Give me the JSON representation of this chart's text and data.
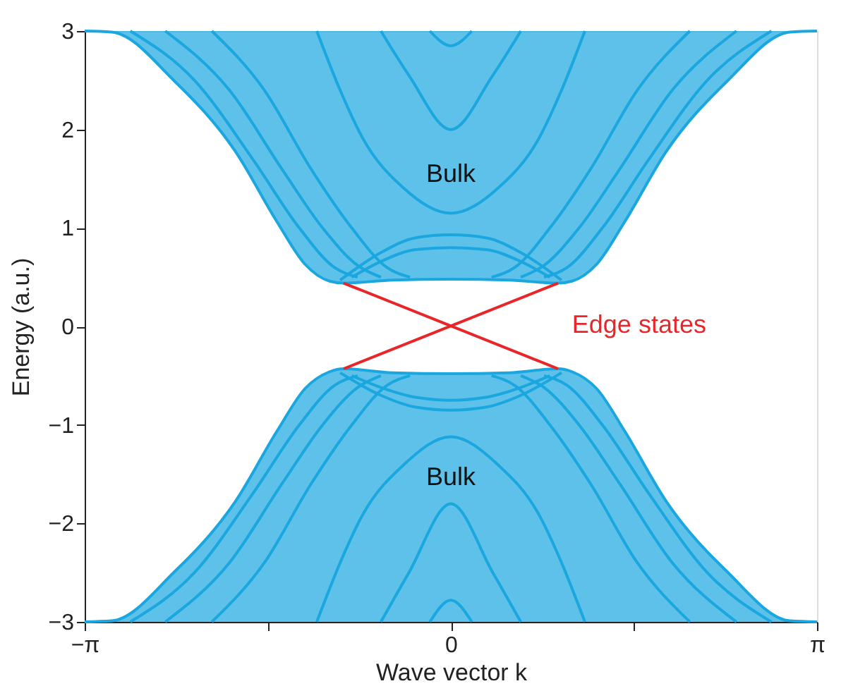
{
  "chart_data": {
    "type": "line",
    "xlabel": "Wave vector k",
    "ylabel": "Energy (a.u.)",
    "xlim": [
      -3.1416,
      3.1416
    ],
    "ylim": [
      -3,
      3
    ],
    "xticks": [
      {
        "value": -3.1416,
        "label": "−π"
      },
      {
        "value": -1.5708,
        "label": null
      },
      0,
      {
        "value": 1.5708,
        "label": null
      },
      {
        "value": 3.1416,
        "label": "π"
      }
    ],
    "yticks": [
      -3,
      -2,
      -1,
      0,
      1,
      2,
      3
    ],
    "grid": false,
    "line_style": "solid",
    "annotations": [
      "Bulk",
      "Bulk"
    ],
    "series": [
      {
        "color": "#1aa7e0",
        "x": [
          -3.1416,
          -2.91,
          -2.37,
          -1.85,
          -1.49,
          -1.25,
          -1.04,
          -0.92,
          -0.5,
          0,
          0.5,
          0.92,
          1.04,
          1.25,
          1.49,
          1.85,
          2.37,
          2.91,
          3.1416
        ],
        "values": [
          3,
          2.99,
          2.49,
          1.78,
          1.06,
          0.63,
          0.46,
          0.44,
          0.47,
          0.48,
          0.47,
          0.44,
          0.46,
          0.63,
          1.06,
          1.78,
          2.49,
          2.99,
          3
        ],
        "lower": [
          3,
          2.99,
          2.49,
          1.78,
          1.06,
          0.63,
          0.46,
          0.44,
          0.47,
          0.48,
          0.47,
          0.44,
          0.46,
          0.63,
          1.06,
          1.78,
          2.49,
          2.99,
          3
        ],
        "upper": [
          3,
          3,
          3,
          3,
          3,
          3,
          3,
          3,
          3,
          3,
          3,
          3,
          3,
          3,
          3,
          3,
          3,
          3,
          3
        ]
      },
      {
        "color": "#1aa7e0",
        "x": [
          -3.1416,
          -2.91,
          -2.37,
          -1.85,
          -1.49,
          -1.25,
          -1.04,
          -0.92,
          -0.5,
          0,
          0.5,
          0.92,
          1.04,
          1.25,
          1.49,
          1.85,
          2.37,
          2.91,
          3.1416
        ],
        "values": [
          -3,
          -2.99,
          -2.49,
          -1.78,
          -1.06,
          -0.63,
          -0.46,
          -0.43,
          -0.47,
          -0.48,
          -0.47,
          -0.43,
          -0.46,
          -0.63,
          -1.06,
          -1.78,
          -2.49,
          -2.99,
          -3
        ],
        "lower": [
          -3,
          -3,
          -3,
          -3,
          -3,
          -3,
          -3,
          -3,
          -3,
          -3,
          -3,
          -3,
          -3,
          -3,
          -3,
          -3,
          -3,
          -3,
          -3
        ],
        "upper": [
          -3,
          -2.99,
          -2.49,
          -1.78,
          -1.06,
          -0.63,
          -0.46,
          -0.43,
          -0.47,
          -0.48,
          -0.47,
          -0.43,
          -0.46,
          -0.63,
          -1.06,
          -1.78,
          -2.49,
          -2.99,
          -3
        ]
      },
      {
        "type": "line",
        "color": "#1aa7e0",
        "x": [
          -2.75,
          -2.2,
          -1.7,
          -1.3,
          -1.0,
          -0.8
        ],
        "values": [
          3,
          2.5,
          1.7,
          1.0,
          0.6,
          0.5
        ]
      },
      {
        "type": "line",
        "color": "#1aa7e0",
        "x": [
          -2.45,
          -1.9,
          -1.45,
          -1.1,
          -0.8,
          -0.6
        ],
        "values": [
          3,
          2.4,
          1.6,
          1.0,
          0.62,
          0.5
        ]
      },
      {
        "type": "line",
        "color": "#1aa7e0",
        "x": [
          -2.05,
          -1.6,
          -1.2,
          -0.85,
          -0.55,
          -0.35
        ],
        "values": [
          3,
          2.4,
          1.6,
          1.0,
          0.6,
          0.5
        ]
      },
      {
        "type": "line",
        "color": "#1aa7e0",
        "x": [
          0.8,
          1.0,
          1.3,
          1.7,
          2.2,
          2.75
        ],
        "values": [
          0.5,
          0.6,
          1.0,
          1.7,
          2.5,
          3
        ]
      },
      {
        "type": "line",
        "color": "#1aa7e0",
        "x": [
          0.6,
          0.8,
          1.1,
          1.45,
          1.9,
          2.45
        ],
        "values": [
          0.5,
          0.62,
          1.0,
          1.6,
          2.4,
          3
        ]
      },
      {
        "type": "line",
        "color": "#1aa7e0",
        "x": [
          0.35,
          0.55,
          0.85,
          1.2,
          1.6,
          2.05
        ],
        "values": [
          0.5,
          0.6,
          1.0,
          1.6,
          2.4,
          3
        ]
      },
      {
        "type": "line",
        "color": "#1aa7e0",
        "x": [
          -1.15,
          -0.95,
          -0.76,
          -0.4,
          0,
          0.4,
          0.76,
          0.95,
          1.15
        ],
        "values": [
          3,
          2.4,
          1.92,
          1.4,
          1.15,
          1.4,
          1.92,
          2.4,
          3
        ]
      },
      {
        "type": "line",
        "color": "#1aa7e0",
        "x": [
          -0.6,
          -0.36,
          0,
          0.36,
          0.6
        ],
        "values": [
          3,
          2.55,
          2.0,
          2.55,
          3
        ]
      },
      {
        "type": "line",
        "color": "#1aa7e0",
        "x": [
          -0.18,
          0,
          0.18
        ],
        "values": [
          3,
          2.85,
          3
        ]
      },
      {
        "type": "line",
        "color": "#1aa7e0",
        "x": [
          -0.95,
          -0.6,
          -0.3,
          0,
          0.3,
          0.6,
          0.95
        ],
        "values": [
          0.47,
          0.75,
          0.9,
          0.93,
          0.9,
          0.75,
          0.47
        ]
      },
      {
        "type": "line",
        "color": "#1aa7e0",
        "x": [
          -0.85,
          -0.6,
          -0.3,
          0,
          0.3,
          0.6,
          0.85
        ],
        "values": [
          0.5,
          0.66,
          0.78,
          0.8,
          0.78,
          0.66,
          0.5
        ]
      },
      {
        "type": "line",
        "color": "#1aa7e0",
        "x": [
          -2.75,
          -2.2,
          -1.7,
          -1.3,
          -1.0,
          -0.8
        ],
        "values": [
          -3,
          -2.5,
          -1.7,
          -1.0,
          -0.6,
          -0.5
        ]
      },
      {
        "type": "line",
        "color": "#1aa7e0",
        "x": [
          -2.45,
          -1.9,
          -1.45,
          -1.1,
          -0.8,
          -0.6
        ],
        "values": [
          -3,
          -2.4,
          -1.6,
          -1.0,
          -0.62,
          -0.5
        ]
      },
      {
        "type": "line",
        "color": "#1aa7e0",
        "x": [
          -2.05,
          -1.6,
          -1.2,
          -0.85,
          -0.55,
          -0.35
        ],
        "values": [
          -3,
          -2.4,
          -1.6,
          -1.0,
          -0.6,
          -0.5
        ]
      },
      {
        "type": "line",
        "color": "#1aa7e0",
        "x": [
          0.8,
          1.0,
          1.3,
          1.7,
          2.2,
          2.75
        ],
        "values": [
          -0.5,
          -0.6,
          -1.0,
          -1.7,
          -2.5,
          -3
        ]
      },
      {
        "type": "line",
        "color": "#1aa7e0",
        "x": [
          0.6,
          0.8,
          1.1,
          1.45,
          1.9,
          2.45
        ],
        "values": [
          -0.5,
          -0.62,
          -1.0,
          -1.6,
          -2.4,
          -3
        ]
      },
      {
        "type": "line",
        "color": "#1aa7e0",
        "x": [
          0.35,
          0.55,
          0.85,
          1.2,
          1.6,
          2.05
        ],
        "values": [
          -0.5,
          -0.6,
          -1.0,
          -1.6,
          -2.4,
          -3
        ]
      },
      {
        "type": "line",
        "color": "#1aa7e0",
        "x": [
          -1.15,
          -0.95,
          -0.76,
          -0.4,
          0,
          0.4,
          0.76,
          0.95,
          1.15
        ],
        "values": [
          -3,
          -2.4,
          -1.92,
          -1.4,
          -1.12,
          -1.4,
          -1.92,
          -2.4,
          -3
        ]
      },
      {
        "type": "line",
        "color": "#1aa7e0",
        "x": [
          -0.6,
          -0.36,
          0,
          0.36,
          0.6
        ],
        "values": [
          -3,
          -2.5,
          -1.8,
          -2.5,
          -3
        ]
      },
      {
        "type": "line",
        "color": "#1aa7e0",
        "x": [
          -0.18,
          0,
          0.18
        ],
        "values": [
          -3,
          -2.78,
          -3
        ]
      },
      {
        "type": "line",
        "color": "#1aa7e0",
        "x": [
          -0.95,
          -0.6,
          -0.3,
          0,
          0.3,
          0.6,
          0.95
        ],
        "values": [
          -0.47,
          -0.7,
          -0.82,
          -0.85,
          -0.82,
          -0.7,
          -0.47
        ]
      },
      {
        "type": "line",
        "color": "#1aa7e0",
        "x": [
          -0.85,
          -0.6,
          -0.3,
          0,
          0.3,
          0.6,
          0.85
        ],
        "values": [
          -0.5,
          -0.62,
          -0.72,
          -0.75,
          -0.72,
          -0.62,
          -0.5
        ]
      },
      {
        "type": "line",
        "color": "#e8262a",
        "name": "Edge states",
        "x": [
          -0.92,
          0.92
        ],
        "values": [
          0.44,
          -0.43
        ]
      },
      {
        "type": "line",
        "color": "#e8262a",
        "x": [
          -0.92,
          0.92
        ],
        "values": [
          -0.43,
          0.44
        ]
      }
    ]
  }
}
